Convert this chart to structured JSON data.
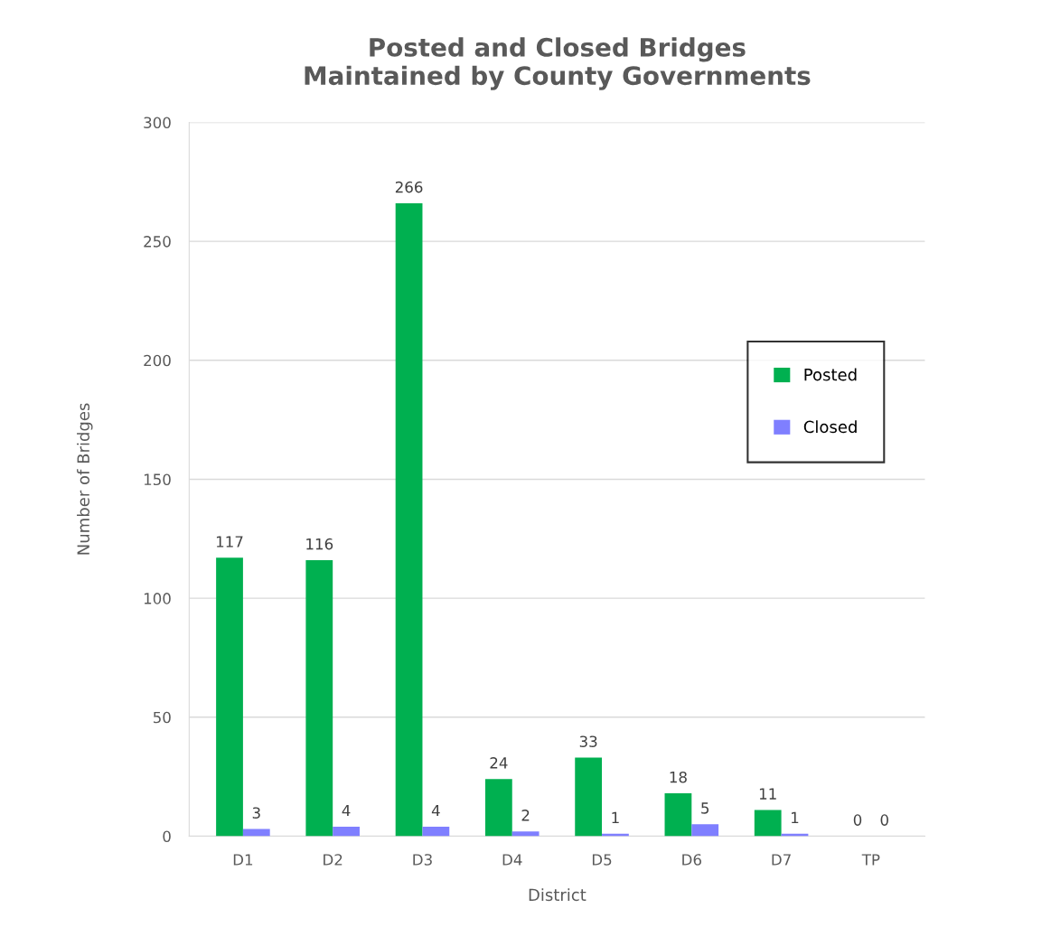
{
  "chart_data": {
    "type": "bar",
    "title": "Posted and Closed Bridges\nMaintained by County Governments",
    "xlabel": "District",
    "ylabel": "Number of Bridges",
    "categories": [
      "D1",
      "D2",
      "D3",
      "D4",
      "D5",
      "D6",
      "D7",
      "TP"
    ],
    "series": [
      {
        "name": "Posted",
        "color": "#00b050",
        "values": [
          117,
          116,
          266,
          24,
          33,
          18,
          11,
          0
        ]
      },
      {
        "name": "Closed",
        "color": "#7f7fff",
        "values": [
          3,
          4,
          4,
          2,
          1,
          5,
          1,
          0
        ]
      }
    ],
    "ylim": [
      0,
      300
    ],
    "yticks": [
      0,
      50,
      100,
      150,
      200,
      250,
      300
    ],
    "grid": "y",
    "legend": "top right",
    "data_labels": true
  }
}
